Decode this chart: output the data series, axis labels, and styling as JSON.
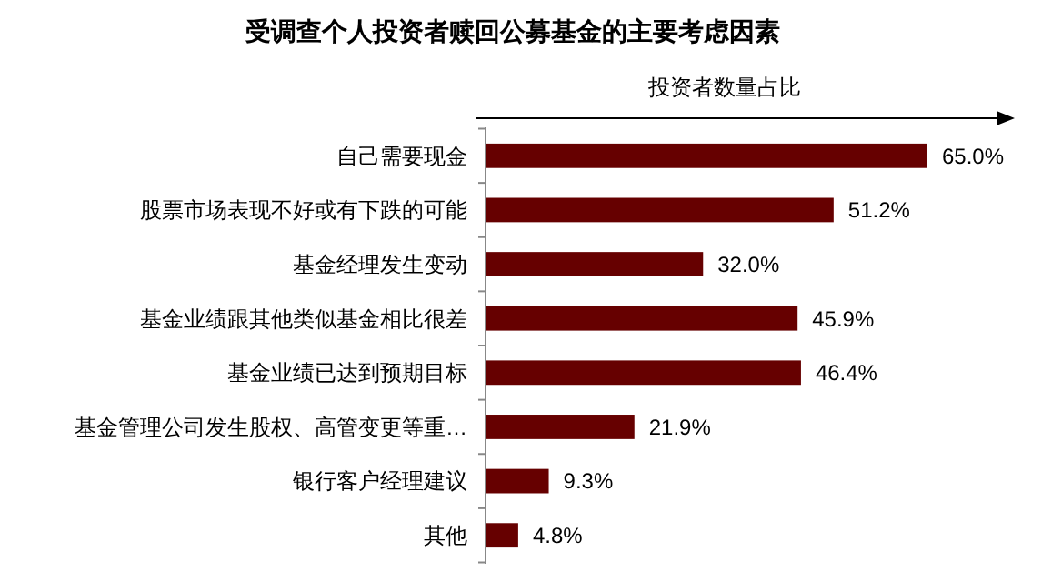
{
  "chart_data": {
    "type": "bar",
    "orientation": "horizontal",
    "title": "受调查个人投资者赎回公募基金的主要考虑因素",
    "xlabel": "投资者数量占比",
    "categories": [
      "自己需要现金",
      "股票市场表现不好或有下跌的可能",
      "基金经理发生变动",
      "基金业绩跟其他类似基金相比很差",
      "基金业绩已达到预期目标",
      "基金管理公司发生股权、高管变更等重…",
      "银行客户经理建议",
      "其他"
    ],
    "values": [
      65.0,
      51.2,
      32.0,
      45.9,
      46.4,
      21.9,
      9.3,
      4.8
    ],
    "value_labels": [
      "65.0%",
      "51.2%",
      "32.0%",
      "45.9%",
      "46.4%",
      "21.9%",
      "9.3%",
      "4.8%"
    ],
    "color": "#660000"
  }
}
